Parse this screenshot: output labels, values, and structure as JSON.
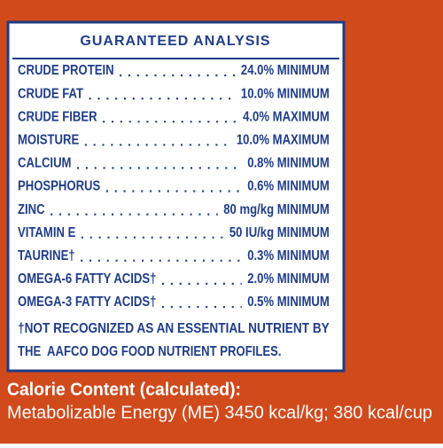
{
  "panel": {
    "title": "GUARANTEED ANALYSIS",
    "rows": [
      [
        "CRUDE PROTEIN",
        "24.0% MINIMUM"
      ],
      [
        "CRUDE FAT",
        "10.0% MINIMUM"
      ],
      [
        "CRUDE FIBER",
        "4.0% MAXIMUM"
      ],
      [
        "MOISTURE",
        "10.0% MAXIMUM"
      ],
      [
        "CALCIUM",
        "0.8% MINIMUM"
      ],
      [
        "PHOSPHORUS",
        "0.6% MINIMUM"
      ],
      [
        "ZINC",
        "80 mg/kg MINIMUM"
      ],
      [
        "VITAMIN E",
        "50 IU/kg MINIMUM"
      ],
      [
        "TAURINE†",
        "0.3% MINIMUM"
      ],
      [
        "OMEGA-6 FATTY ACIDS†",
        "2.0% MINIMUM"
      ],
      [
        "OMEGA-3 FATTY ACIDS†",
        "0.5% MINIMUM"
      ]
    ],
    "footnote": [
      "†NOT RECOGNIZED AS AN ESSENTIAL NUTRIENT BY",
      "THE  AAFCO DOG FOOD NUTRIENT PROFILES."
    ]
  },
  "calorie": {
    "heading": "Calorie Content (calculated):",
    "text": "Metabolizable Energy (ME) 3450 kcal/kg; 380 kcal/cup"
  }
}
